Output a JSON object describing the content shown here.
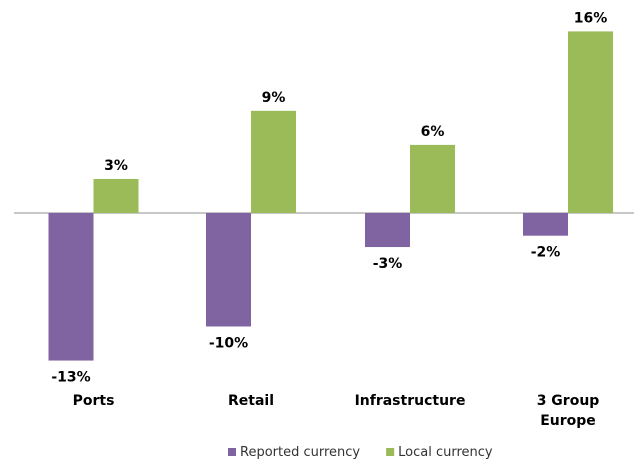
{
  "chart_data": {
    "type": "bar",
    "categories": [
      "Ports",
      "Retail",
      "Infrastructure",
      "3 Group Europe"
    ],
    "category_display": [
      [
        "Ports"
      ],
      [
        "Retail"
      ],
      [
        "Infrastructure"
      ],
      [
        "3 Group",
        "Europe"
      ]
    ],
    "series": [
      {
        "name": "Reported currency",
        "values": [
          -13,
          -10,
          -3,
          -2
        ],
        "labels": [
          "-13%",
          "-10%",
          "-3%",
          "-2%"
        ],
        "color": "#8064a2"
      },
      {
        "name": "Local currency",
        "values": [
          3,
          9,
          6,
          16
        ],
        "labels": [
          "3%",
          "9%",
          "6%",
          "16%"
        ],
        "color": "#9bbb59"
      }
    ],
    "title": "",
    "xlabel": "",
    "ylabel": "",
    "ylim": [
      -13,
      16
    ],
    "grid": false,
    "legend_position": "bottom-center"
  }
}
